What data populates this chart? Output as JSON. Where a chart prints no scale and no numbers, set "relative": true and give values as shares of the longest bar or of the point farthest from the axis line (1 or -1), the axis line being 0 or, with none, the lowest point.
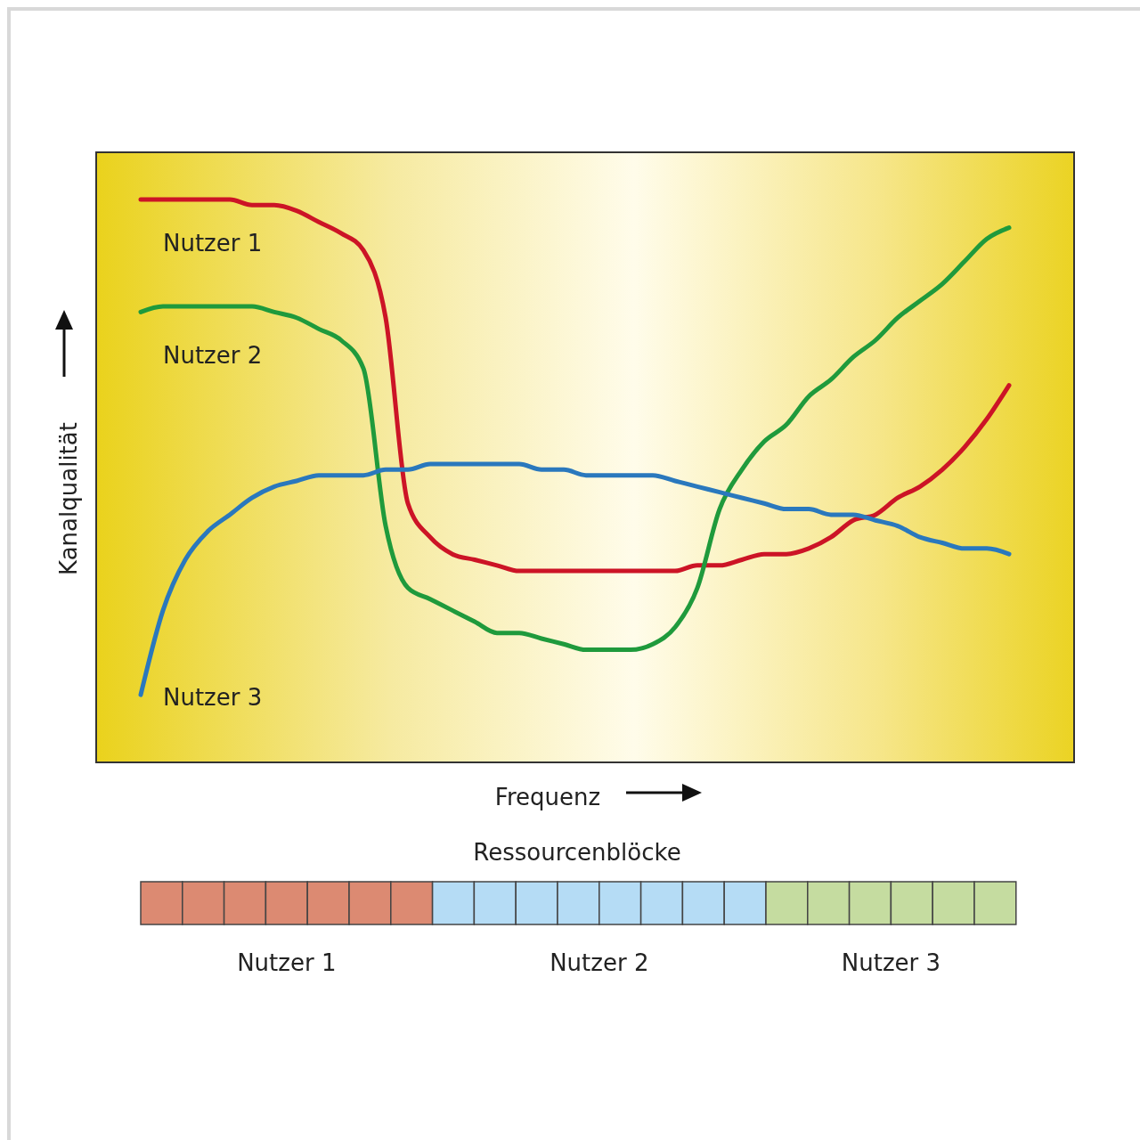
{
  "chart_data": [
    {
      "type": "line",
      "xlabel": "Frequenz",
      "ylabel": "Kanalqualität",
      "relative": true,
      "categories": [
        null,
        null,
        null,
        null,
        null,
        null,
        null,
        null,
        null,
        null,
        null,
        null,
        null,
        null,
        null,
        null,
        null,
        null,
        null,
        null,
        null,
        null,
        null,
        null,
        null,
        null,
        null,
        null,
        null,
        null,
        null,
        null,
        null,
        null,
        null,
        null,
        null,
        null,
        null,
        null
      ],
      "series": [
        {
          "name": "Nutzer 1",
          "color": "#cc1426",
          "values": [
            1.0,
            1.0,
            1.0,
            1.0,
            1.0,
            0.99,
            0.99,
            0.98,
            0.96,
            0.94,
            0.91,
            0.79,
            0.46,
            0.4,
            0.37,
            0.36,
            0.35,
            0.34,
            0.34,
            0.34,
            0.34,
            0.34,
            0.34,
            0.34,
            0.34,
            0.35,
            0.35,
            0.36,
            0.37,
            0.37,
            0.38,
            0.4,
            0.43,
            0.44,
            0.47,
            0.49,
            0.52,
            0.56,
            0.61,
            0.67
          ]
        },
        {
          "name": "Nutzer 2",
          "color": "#1f9a3c",
          "values": [
            0.8,
            0.81,
            0.81,
            0.81,
            0.81,
            0.81,
            0.8,
            0.79,
            0.77,
            0.75,
            0.7,
            0.42,
            0.31,
            0.29,
            0.27,
            0.25,
            0.23,
            0.23,
            0.22,
            0.21,
            0.2,
            0.2,
            0.2,
            0.21,
            0.24,
            0.31,
            0.45,
            0.52,
            0.57,
            0.6,
            0.65,
            0.68,
            0.72,
            0.75,
            0.79,
            0.82,
            0.85,
            0.89,
            0.93,
            0.95
          ]
        },
        {
          "name": "Nutzer 3",
          "color": "#2a78bd",
          "values": [
            0.12,
            0.27,
            0.36,
            0.41,
            0.44,
            0.47,
            0.49,
            0.5,
            0.51,
            0.51,
            0.51,
            0.52,
            0.52,
            0.53,
            0.53,
            0.53,
            0.53,
            0.53,
            0.52,
            0.52,
            0.51,
            0.51,
            0.51,
            0.51,
            0.5,
            0.49,
            0.48,
            0.47,
            0.46,
            0.45,
            0.45,
            0.44,
            0.44,
            0.43,
            0.42,
            0.4,
            0.39,
            0.38,
            0.38,
            0.37
          ]
        }
      ]
    },
    {
      "type": "other",
      "title": "Ressourcenblöcke",
      "annotations": [
        "Nutzer 1",
        "Nutzer 2",
        "Nutzer 3"
      ]
    }
  ]
}
